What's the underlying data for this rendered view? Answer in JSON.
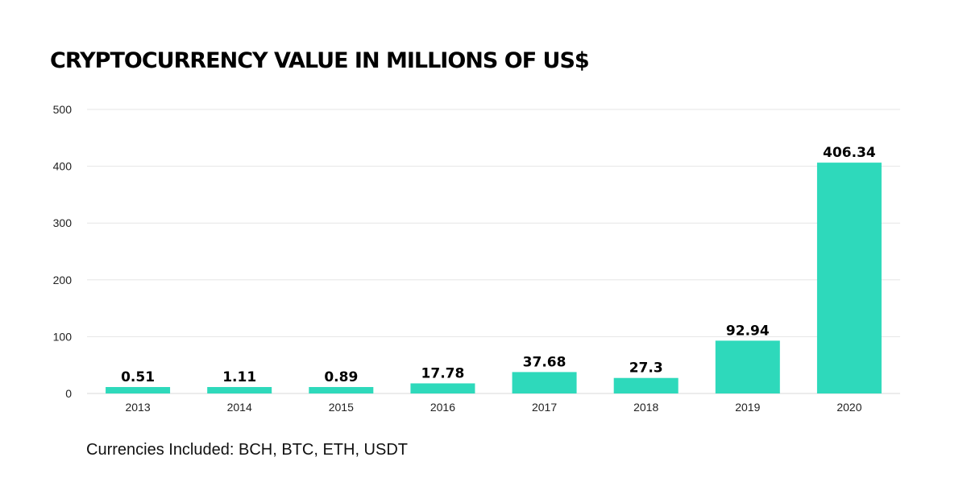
{
  "chart_data": {
    "type": "bar",
    "title": "CRYPTOCURRENCY VALUE IN MILLIONS OF US$",
    "categories": [
      "2013",
      "2014",
      "2015",
      "2016",
      "2017",
      "2018",
      "2019",
      "2020"
    ],
    "values": [
      0.51,
      1.11,
      0.89,
      17.78,
      37.68,
      27.3,
      92.94,
      406.34
    ],
    "value_labels": [
      "0.51",
      "1.11",
      "0.89",
      "17.78",
      "37.68",
      "27.3",
      "92.94",
      "406.34"
    ],
    "y_ticks": [
      0,
      100,
      200,
      300,
      400,
      500
    ],
    "ylim": [
      0,
      500
    ],
    "xlabel": "",
    "ylabel": "",
    "bar_color": "#2ed9bb",
    "grid": true,
    "legend": "none"
  },
  "footnote": "Currencies Included: BCH, BTC, ETH, USDT"
}
